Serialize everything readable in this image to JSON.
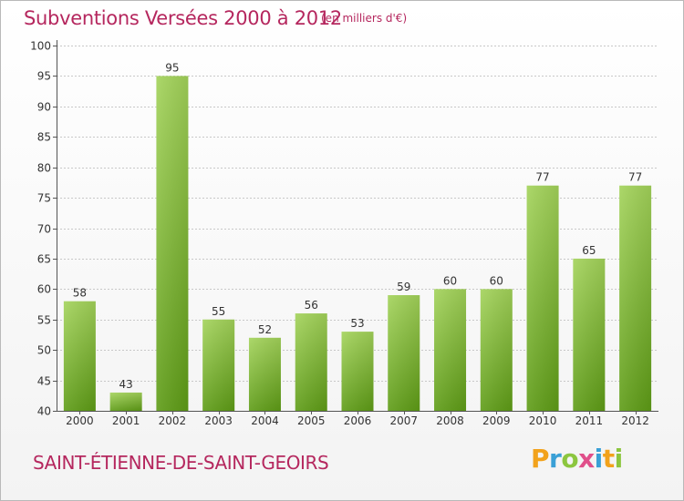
{
  "header": {
    "title": "Subventions Versées 2000 à 2012",
    "unit": "(en milliers d'€)"
  },
  "footer": {
    "commune": "SAINT-ÉTIENNE-DE-SAINT-GEOIRS",
    "logo": "Proxiti",
    "logo_colors": [
      "#f2a21b",
      "#3aa0d6",
      "#8cc63f",
      "#e04f8a",
      "#3aa0d6",
      "#f2a21b",
      "#8cc63f"
    ]
  },
  "colors": {
    "bar_top": "#a3d35a",
    "bar_bottom": "#5e9c16",
    "text": "#b5275e",
    "axis": "#555555",
    "grid": "#c8c8c8"
  },
  "chart_data": {
    "type": "bar",
    "title": "Subventions Versées 2000 à 2012",
    "subtitle": "(en milliers d'€)",
    "categories": [
      "2000",
      "2001",
      "2002",
      "2003",
      "2004",
      "2005",
      "2006",
      "2007",
      "2008",
      "2009",
      "2010",
      "2011",
      "2012"
    ],
    "values": [
      58,
      43,
      95,
      55,
      52,
      56,
      53,
      59,
      60,
      60,
      77,
      65,
      77
    ],
    "ylim": [
      40,
      100
    ],
    "yticks": [
      40,
      45,
      50,
      55,
      60,
      65,
      70,
      75,
      80,
      85,
      90,
      95,
      100
    ],
    "grid": true,
    "xlabel": "",
    "ylabel": ""
  }
}
